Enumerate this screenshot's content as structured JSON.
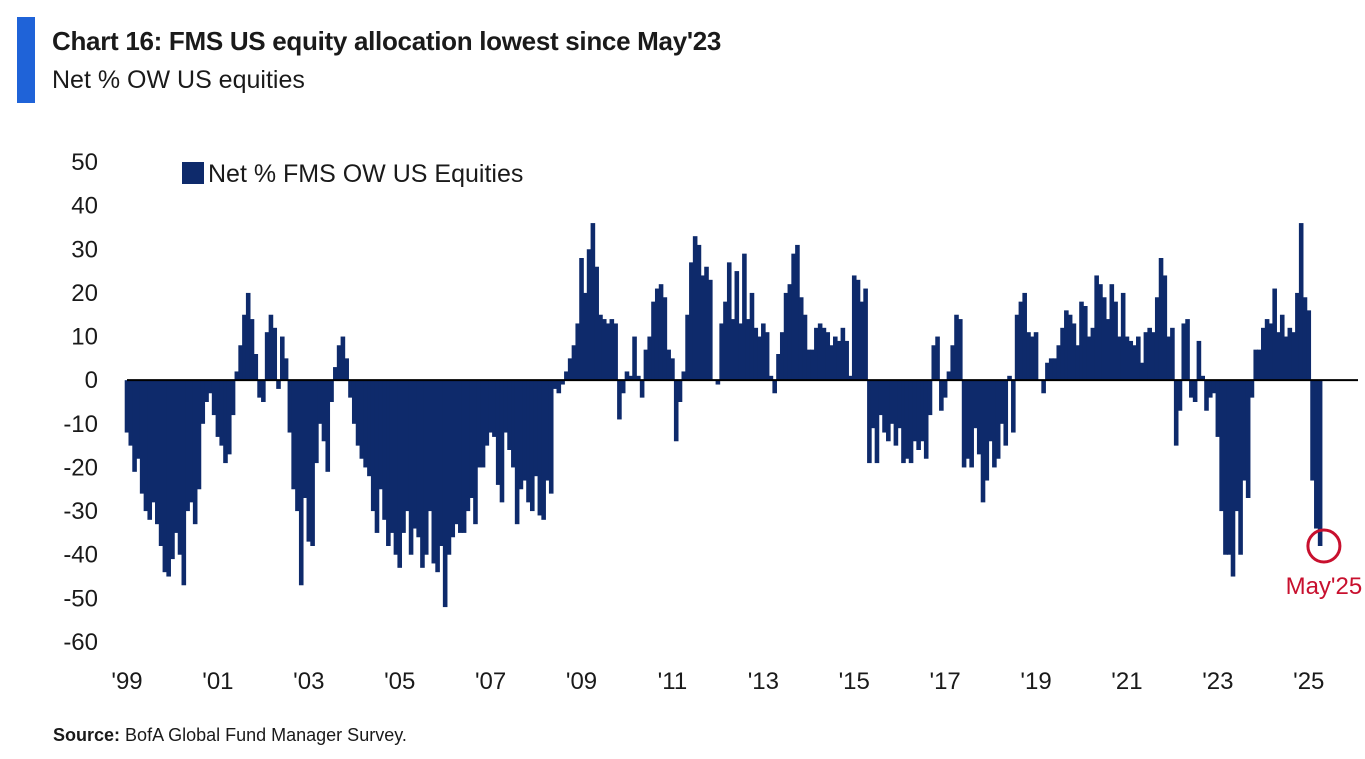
{
  "header": {
    "title": "Chart 16: FMS US equity allocation lowest since May'23",
    "subtitle": "Net % OW US equities"
  },
  "footer": {
    "source_label": "Source:",
    "source_text": "BofA Global Fund Manager Survey."
  },
  "colors": {
    "bar": "#0e2a6b",
    "accent": "#1f63d8",
    "annotation": "#c8102e",
    "zero_line": "#000000"
  },
  "chart_data": {
    "type": "bar",
    "title": "Chart 16: FMS US equity allocation lowest since May'23",
    "subtitle": "Net % OW US equities",
    "xlabel": "",
    "ylabel": "",
    "ylim": [
      -60,
      50
    ],
    "yticks": [
      50,
      40,
      30,
      20,
      10,
      0,
      -10,
      -20,
      -30,
      -40,
      -50,
      -60
    ],
    "xlim": [
      "1999-01",
      "2026-02"
    ],
    "xtick_labels": [
      "'99",
      "'01",
      "'03",
      "'05",
      "'07",
      "'09",
      "'11",
      "'13",
      "'15",
      "'17",
      "'19",
      "'21",
      "'23",
      "'25"
    ],
    "xtick_dates": [
      "1999-01",
      "2001-01",
      "2003-01",
      "2005-01",
      "2007-01",
      "2009-01",
      "2011-01",
      "2013-01",
      "2015-01",
      "2017-01",
      "2019-01",
      "2021-01",
      "2023-01",
      "2025-01"
    ],
    "legend": {
      "position": "top-left",
      "entries": [
        "Net % FMS OW US Equities"
      ]
    },
    "grid": false,
    "annotation": {
      "text": "May'25",
      "date": "2025-05",
      "value": -38,
      "marker": "circle"
    },
    "series": [
      {
        "name": "Net % FMS OW US Equities",
        "start": "1999-01",
        "frequency": "monthly",
        "values": [
          -12,
          -15,
          -21,
          -18,
          -26,
          -30,
          -32,
          -28,
          -33,
          -38,
          -44,
          -45,
          -41,
          -35,
          -40,
          -47,
          -30,
          -28,
          -33,
          -25,
          -10,
          -5,
          -3,
          -8,
          -13,
          -15,
          -19,
          -17,
          -8,
          2,
          8,
          15,
          20,
          14,
          6,
          -4,
          -5,
          11,
          15,
          12,
          -2,
          10,
          5,
          -12,
          -25,
          -30,
          -47,
          -27,
          -37,
          -38,
          -19,
          -10,
          -14,
          -21,
          -5,
          3,
          8,
          10,
          5,
          -4,
          -10,
          -15,
          -18,
          -20,
          -22,
          -30,
          -35,
          -25,
          -32,
          -38,
          -35,
          -40,
          -43,
          -35,
          -30,
          -40,
          -34,
          -36,
          -43,
          -40,
          -30,
          -42,
          -44,
          -38,
          -52,
          -40,
          -36,
          -33,
          -35,
          -35,
          -30,
          -27,
          -33,
          -20,
          -20,
          -15,
          -12,
          -13,
          -24,
          -28,
          -12,
          -16,
          -20,
          -33,
          -25,
          -23,
          -28,
          -30,
          -22,
          -31,
          -32,
          -23,
          -26,
          -2,
          -3,
          -1,
          2,
          5,
          8,
          13,
          28,
          20,
          30,
          36,
          26,
          15,
          14,
          13,
          14,
          13,
          -9,
          -3,
          2,
          1,
          10,
          1,
          -4,
          7,
          10,
          18,
          21,
          22,
          19,
          7,
          5,
          -14,
          -5,
          2,
          15,
          27,
          33,
          31,
          24,
          26,
          23,
          0,
          -1,
          13,
          18,
          27,
          14,
          25,
          13,
          29,
          14,
          20,
          12,
          10,
          13,
          11,
          1,
          -3,
          6,
          11,
          20,
          22,
          29,
          31,
          19,
          15,
          7,
          7,
          12,
          13,
          12,
          11,
          8,
          10,
          9,
          12,
          9,
          1,
          24,
          23,
          18,
          21,
          -19,
          -11,
          -19,
          -8,
          -12,
          -14,
          -10,
          -15,
          -11,
          -19,
          -18,
          -19,
          -14,
          -16,
          -14,
          -18,
          -8,
          8,
          10,
          -7,
          -4,
          2,
          8,
          15,
          14,
          -20,
          -18,
          -20,
          -11,
          -17,
          -28,
          -23,
          -14,
          -20,
          -18,
          -10,
          -15,
          1,
          -12,
          15,
          18,
          20,
          11,
          10,
          11,
          0,
          -3,
          4,
          5,
          5,
          8,
          12,
          16,
          15,
          13,
          8,
          18,
          17,
          10,
          12,
          24,
          22,
          19,
          14,
          22,
          18,
          10,
          20,
          10,
          9,
          8,
          10,
          4,
          11,
          12,
          11,
          19,
          28,
          24,
          10,
          12,
          -15,
          -7,
          13,
          14,
          -4,
          -5,
          9,
          1,
          -7,
          -4,
          -3,
          -13,
          -30,
          -40,
          -40,
          -45,
          -30,
          -40,
          -23,
          -27,
          -4,
          7,
          7,
          12,
          14,
          13,
          21,
          11,
          15,
          10,
          12,
          11,
          20,
          36,
          19,
          16,
          -23,
          -34,
          -38
        ]
      }
    ]
  }
}
